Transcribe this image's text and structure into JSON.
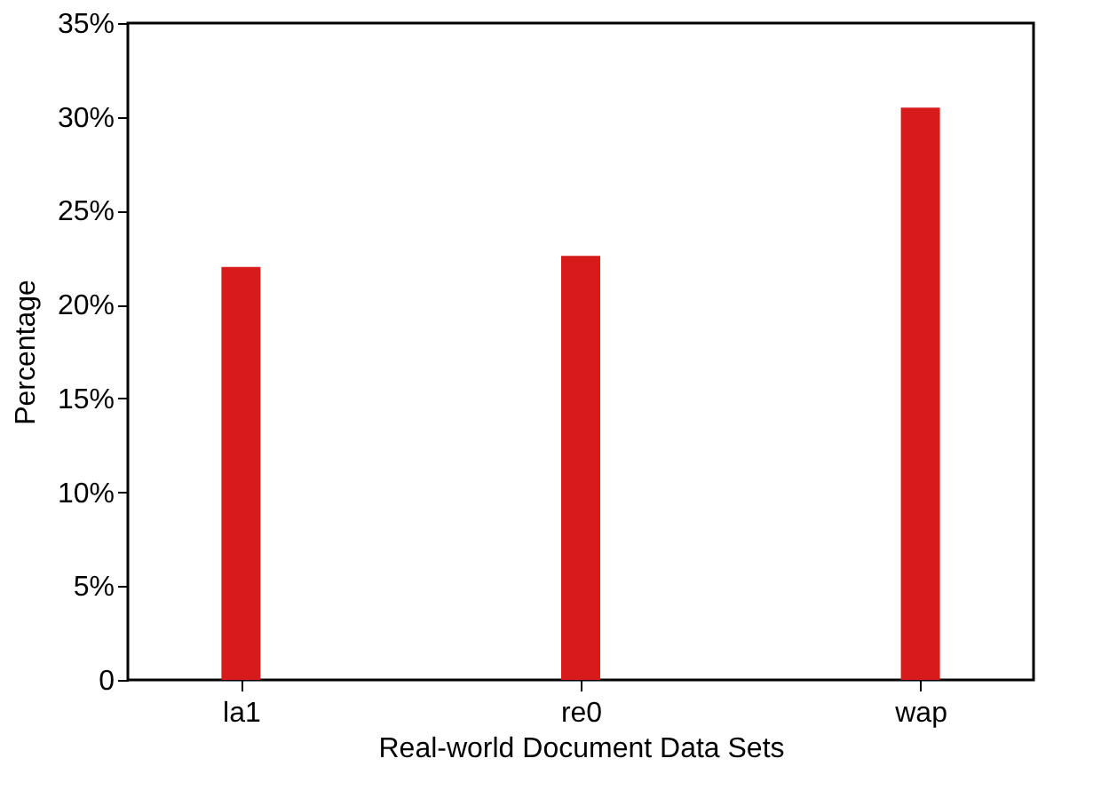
{
  "chart_data": {
    "type": "bar",
    "xlabel": "Real-world Document Data Sets",
    "ylabel": "Percentage",
    "categories": [
      "la1",
      "re0",
      "wap"
    ],
    "values": [
      22,
      22.6,
      30.5
    ],
    "color": "#d71a1a",
    "ylim": [
      0,
      35
    ],
    "yticks": [
      {
        "value": 0,
        "label": "0"
      },
      {
        "value": 5,
        "label": "5%"
      },
      {
        "value": 10,
        "label": "10%"
      },
      {
        "value": 15,
        "label": "15%"
      },
      {
        "value": 20,
        "label": "20%"
      },
      {
        "value": 25,
        "label": "25%"
      },
      {
        "value": 30,
        "label": "30%"
      },
      {
        "value": 35,
        "label": "35%"
      }
    ],
    "grid": false
  }
}
